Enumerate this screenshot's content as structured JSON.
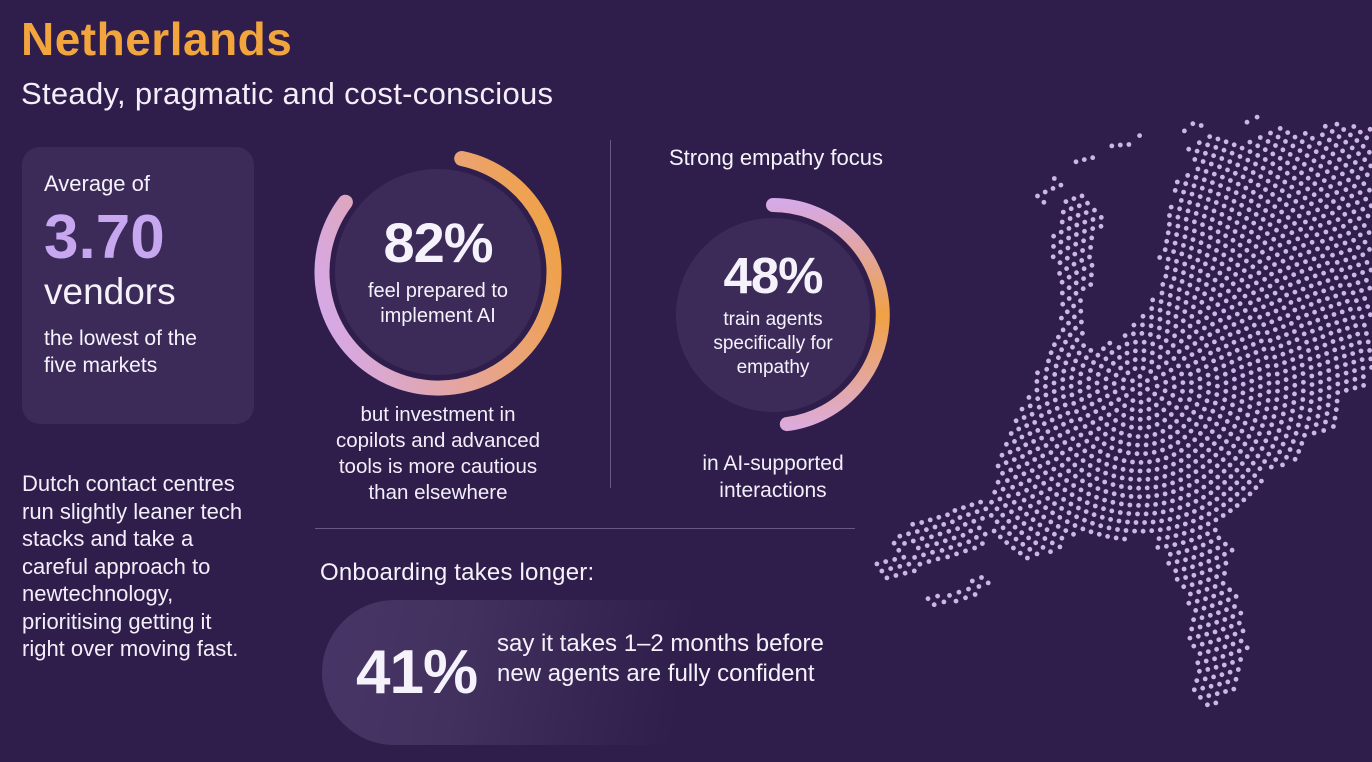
{
  "header": {
    "title": "Netherlands",
    "subtitle": "Steady, pragmatic and cost-conscious"
  },
  "vendor_card": {
    "prefix": "Average of",
    "value": "3.70",
    "unit": "vendors",
    "note": "the lowest of the five markets"
  },
  "summary": "Dutch contact centres run slightly leaner tech stacks and take a careful approach to newtechnology, prioritising getting it right over moving fast.",
  "stats": {
    "prepared": {
      "value": "82%",
      "percent": 82,
      "label": "feel prepared to implement AI",
      "caption": "but investment in copilots and advanced tools is more cautious than elsewhere"
    },
    "empathy": {
      "heading": "Strong empathy focus",
      "value": "48%",
      "percent": 48,
      "label": "train agents specifically for empathy",
      "caption": "in AI-supported interactions"
    }
  },
  "onboarding": {
    "heading": "Onboarding takes longer:",
    "value": "41%",
    "percent": 41,
    "text": "say it takes 1–2 months before new agents are fully confident"
  },
  "map": {
    "region": "Netherlands",
    "style": "dotted-halftone"
  },
  "colors": {
    "background": "#2f1e4b",
    "panel": "#3c2b59",
    "accent_orange": "#f0a143",
    "accent_lavender": "#c7a8f0",
    "ring_lavender": "#d6a9e7",
    "map_dots": "#cdb5ea",
    "divider": "#8a76ab",
    "text": "#f6f2fb"
  },
  "chart_data": [
    {
      "type": "donut",
      "title": "feel prepared to implement AI",
      "values": [
        82
      ],
      "unit": "%"
    },
    {
      "type": "donut",
      "title": "train agents specifically for empathy",
      "values": [
        48
      ],
      "unit": "%"
    }
  ]
}
